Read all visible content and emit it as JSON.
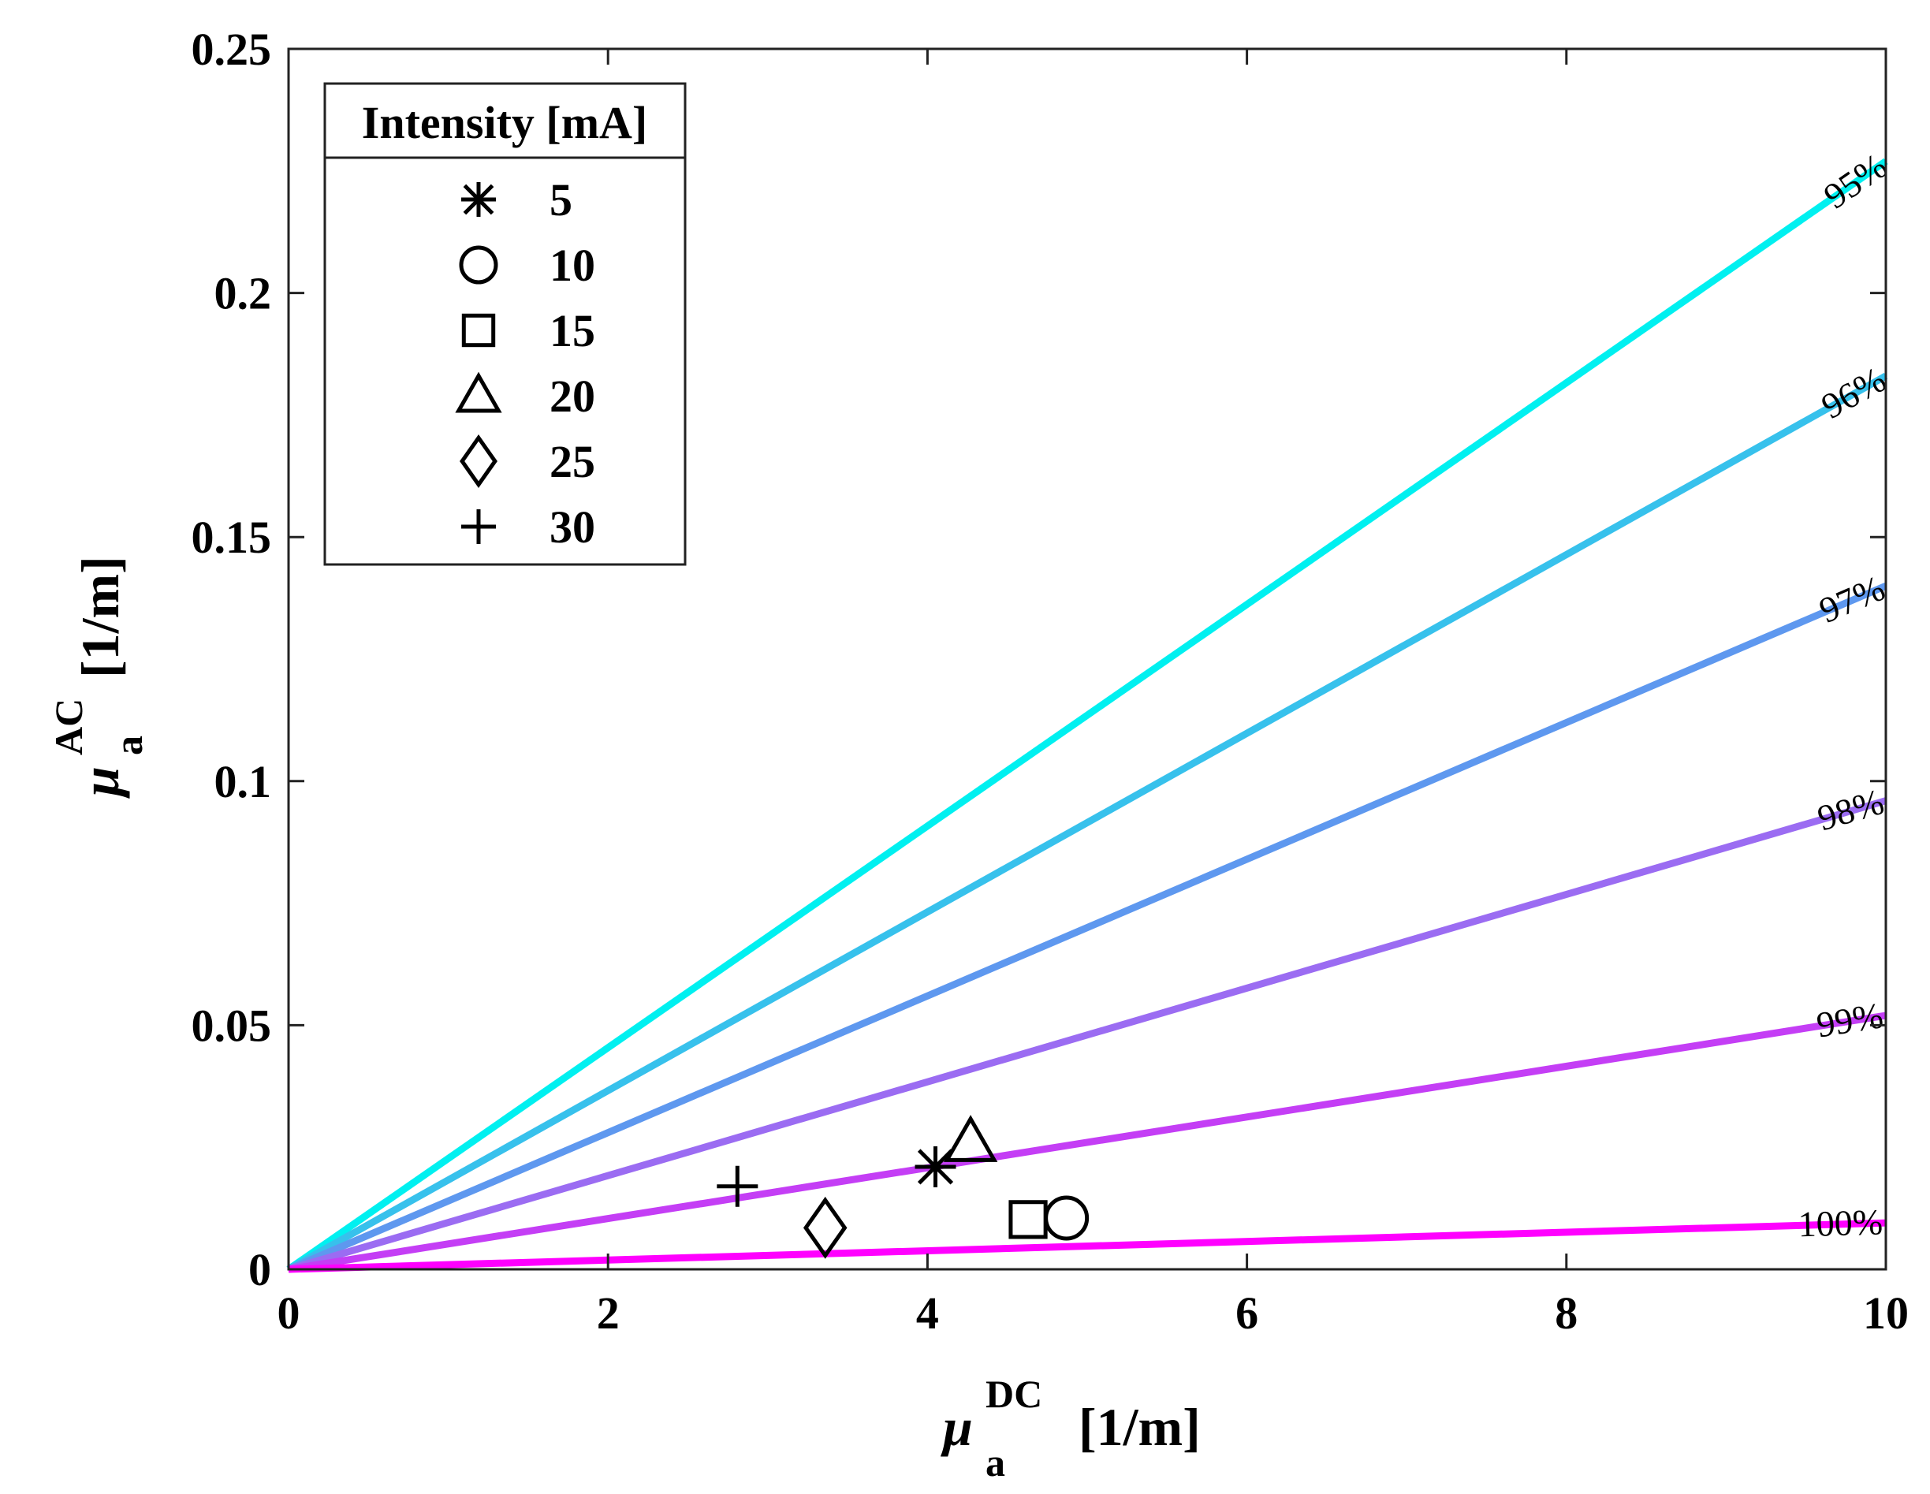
{
  "chart_data": {
    "type": "scatter",
    "title": "",
    "xlabel": {
      "symbol": "μ",
      "superscript": "DC",
      "subscript": "a",
      "unit": "[1/m]"
    },
    "ylabel": {
      "symbol": "μ",
      "superscript": "AC",
      "subscript": "a",
      "unit": "[1/m]"
    },
    "xlim": [
      0,
      10
    ],
    "ylim": [
      0,
      0.25
    ],
    "x_ticks": [
      0,
      2,
      4,
      6,
      8,
      10
    ],
    "x_tick_labels": [
      "0",
      "2",
      "4",
      "6",
      "8",
      "10"
    ],
    "y_ticks": [
      0,
      0.05,
      0.1,
      0.15,
      0.2,
      0.25
    ],
    "y_tick_labels": [
      "0",
      "0.05",
      "0.1",
      "0.15",
      "0.2",
      "0.25"
    ],
    "grid": false,
    "reference_lines": [
      {
        "label": "95%",
        "x": [
          0,
          10
        ],
        "y": [
          0,
          0.227
        ],
        "color": "#00f0f0"
      },
      {
        "label": "96%",
        "x": [
          0,
          10
        ],
        "y": [
          0,
          0.183
        ],
        "color": "#37c1ec"
      },
      {
        "label": "97%",
        "x": [
          0,
          10
        ],
        "y": [
          0,
          0.14
        ],
        "color": "#5e98ef"
      },
      {
        "label": "98%",
        "x": [
          0,
          10
        ],
        "y": [
          0,
          0.096
        ],
        "color": "#9b6cf2"
      },
      {
        "label": "99%",
        "x": [
          0,
          10
        ],
        "y": [
          0,
          0.052
        ],
        "color": "#c43ef5"
      },
      {
        "label": "100%",
        "x": [
          0,
          10
        ],
        "y": [
          0,
          0.0095
        ],
        "color": "#ff00ff"
      }
    ],
    "legend": {
      "title": "Intensity [mA]",
      "position": "top-left",
      "entries": [
        {
          "label": "5",
          "marker": "asterisk"
        },
        {
          "label": "10",
          "marker": "circle"
        },
        {
          "label": "15",
          "marker": "square"
        },
        {
          "label": "20",
          "marker": "triangle"
        },
        {
          "label": "25",
          "marker": "diamond"
        },
        {
          "label": "30",
          "marker": "plus"
        }
      ]
    },
    "series": [
      {
        "name": "5",
        "marker": "asterisk",
        "x": [
          4.05
        ],
        "y": [
          0.021
        ]
      },
      {
        "name": "10",
        "marker": "circle",
        "x": [
          4.87
        ],
        "y": [
          0.0105
        ]
      },
      {
        "name": "15",
        "marker": "square",
        "x": [
          4.63
        ],
        "y": [
          0.0102
        ]
      },
      {
        "name": "20",
        "marker": "triangle",
        "x": [
          4.27
        ],
        "y": [
          0.026
        ]
      },
      {
        "name": "25",
        "marker": "diamond",
        "x": [
          3.36
        ],
        "y": [
          0.0085
        ]
      },
      {
        "name": "30",
        "marker": "plus",
        "x": [
          2.81
        ],
        "y": [
          0.017
        ]
      }
    ]
  }
}
